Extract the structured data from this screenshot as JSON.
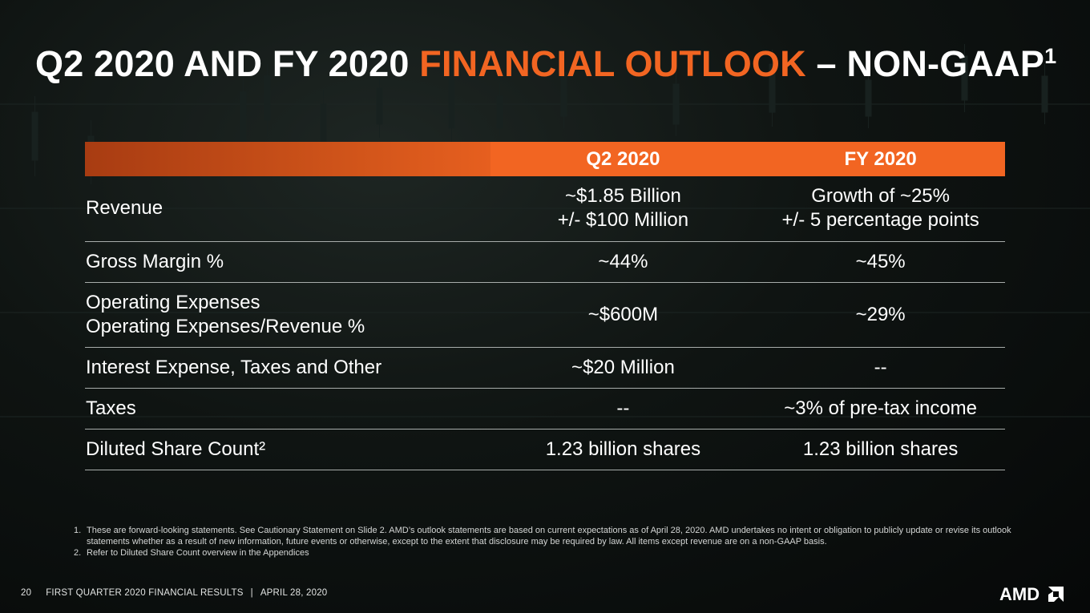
{
  "title": {
    "part1": "Q2 2020 AND FY 2020 ",
    "accent": "FINANCIAL OUTLOOK",
    "part2": " – NON-GAAP",
    "superscript": "1"
  },
  "table": {
    "headers": {
      "corner": "",
      "q2": "Q2 2020",
      "fy": "FY 2020"
    },
    "rows": [
      {
        "label": [
          "Revenue"
        ],
        "q2": [
          "~$1.85 Billion",
          "+/- $100 Million"
        ],
        "fy": [
          "Growth of ~25%",
          "+/- 5 percentage points"
        ]
      },
      {
        "label": [
          "Gross Margin %"
        ],
        "q2": [
          "~44%"
        ],
        "fy": [
          "~45%"
        ]
      },
      {
        "label": [
          "Operating Expenses",
          "Operating Expenses/Revenue %"
        ],
        "q2": [
          "~$600M"
        ],
        "fy": [
          "~29%"
        ]
      },
      {
        "label": [
          "Interest Expense, Taxes and Other"
        ],
        "q2": [
          "~$20 Million"
        ],
        "fy": [
          "--"
        ]
      },
      {
        "label": [
          "Taxes"
        ],
        "q2": [
          "--"
        ],
        "fy": [
          "~3% of pre-tax income"
        ]
      },
      {
        "label": [
          "Diluted Share Count²"
        ],
        "q2": [
          "1.23 billion shares"
        ],
        "fy": [
          "1.23 billion shares"
        ]
      }
    ]
  },
  "footnotes": [
    {
      "num": "1.",
      "text": "These are forward-looking statements.  See Cautionary Statement on Slide 2. AMD’s outlook statements are based on current expectations as of April 28, 2020. AMD undertakes no intent or obligation to publicly update or revise its outlook statements whether as a result of new information, future events or otherwise, except to the extent that disclosure may be required by law.  All items except revenue are on a non-GAAP basis."
    },
    {
      "num": "2.",
      "text": "Refer to Diluted Share Count overview in the Appendices"
    }
  ],
  "footer": {
    "page": "20",
    "left": "FIRST QUARTER 2020 FINANCIAL RESULTS",
    "separator": "|",
    "date": "APRIL 28, 2020"
  },
  "logo": {
    "text": "AMD",
    "icon": "amd-arrow-icon"
  },
  "colors": {
    "accent": "#f26522",
    "background": "#0c110f",
    "divider": "#a8adab"
  }
}
